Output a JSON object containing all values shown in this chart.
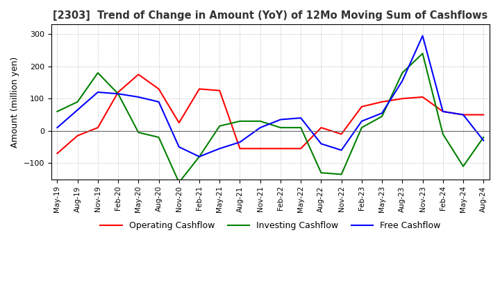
{
  "title": "[2303]  Trend of Change in Amount (YoY) of 12Mo Moving Sum of Cashflows",
  "ylabel": "Amount (million yen)",
  "ylim": [
    -150,
    330
  ],
  "yticks": [
    -100,
    0,
    100,
    200,
    300
  ],
  "legend_labels": [
    "Operating Cashflow",
    "Investing Cashflow",
    "Free Cashflow"
  ],
  "legend_colors": [
    "#ff0000",
    "#008000",
    "#0000ff"
  ],
  "x_labels": [
    "May-19",
    "Aug-19",
    "Nov-19",
    "Feb-20",
    "May-20",
    "Aug-20",
    "Nov-20",
    "Feb-21",
    "May-21",
    "Aug-21",
    "Nov-21",
    "Feb-22",
    "May-22",
    "Aug-22",
    "Nov-22",
    "Feb-23",
    "May-23",
    "Aug-23",
    "Nov-23",
    "Feb-24",
    "May-24",
    "Aug-24"
  ],
  "operating": [
    -70,
    -15,
    10,
    120,
    175,
    130,
    25,
    130,
    125,
    -55,
    -55,
    -55,
    -55,
    10,
    -10,
    75,
    90,
    100,
    105,
    60,
    50,
    50
  ],
  "investing": [
    60,
    90,
    180,
    115,
    -5,
    -20,
    -160,
    -80,
    15,
    30,
    30,
    10,
    10,
    -130,
    -135,
    10,
    45,
    180,
    240,
    -10,
    -110,
    -20
  ],
  "free": [
    10,
    65,
    120,
    115,
    105,
    90,
    -50,
    -80,
    -55,
    -35,
    10,
    35,
    40,
    -40,
    -60,
    30,
    55,
    155,
    295,
    60,
    50,
    -30
  ],
  "background_color": "#ffffff",
  "grid_color": "#aaaaaa"
}
